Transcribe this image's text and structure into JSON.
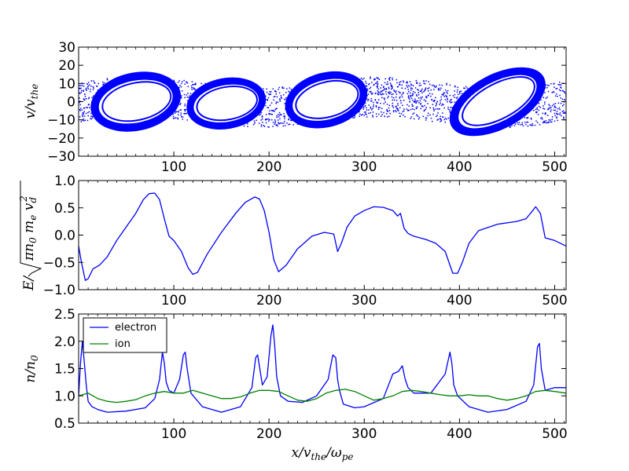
{
  "chart_data": [
    {
      "type": "scatter",
      "panel": "phase-space",
      "ylabel": "v/v_the",
      "xlim": [
        0,
        512
      ],
      "ylim": [
        -30,
        30
      ],
      "xticks": [
        "100",
        "200",
        "300",
        "400",
        "500"
      ],
      "yticks": [
        "−30",
        "−20",
        "−10",
        "0",
        "10",
        "20",
        "30"
      ],
      "color": "#0000ff",
      "vortices": [
        {
          "x": 60,
          "v": 0,
          "width": 48,
          "height": 16,
          "tilt": -12
        },
        {
          "x": 155,
          "v": -1,
          "width": 42,
          "height": 14,
          "tilt": -10
        },
        {
          "x": 260,
          "v": 1,
          "width": 44,
          "height": 15,
          "tilt": -15
        },
        {
          "x": 440,
          "v": 0,
          "width": 55,
          "height": 15,
          "tilt": -28
        }
      ]
    },
    {
      "type": "line",
      "panel": "electric-field",
      "ylabel": "E/√(πn₀ m_e v_d²)",
      "xlim": [
        0,
        512
      ],
      "ylim": [
        -1.0,
        1.0
      ],
      "xticks": [
        "100",
        "200",
        "300",
        "400",
        "500"
      ],
      "yticks": [
        "−1.0",
        "−0.5",
        "0.0",
        "0.5",
        "1.0"
      ],
      "series": [
        {
          "color": "#0000ff",
          "x": [
            0,
            3,
            7,
            10,
            15,
            22,
            30,
            40,
            50,
            60,
            68,
            74,
            80,
            85,
            90,
            95,
            100,
            108,
            115,
            120,
            125,
            135,
            150,
            165,
            175,
            185,
            190,
            195,
            200,
            205,
            210,
            218,
            230,
            245,
            258,
            268,
            272,
            276,
            282,
            290,
            300,
            310,
            320,
            330,
            335,
            338,
            342,
            346,
            352,
            365,
            375,
            385,
            393,
            398,
            403,
            410,
            420,
            440,
            460,
            470,
            477,
            480,
            485,
            490,
            500,
            512
          ],
          "y": [
            -0.2,
            -0.5,
            -0.83,
            -0.8,
            -0.62,
            -0.55,
            -0.4,
            -0.1,
            0.15,
            0.4,
            0.65,
            0.76,
            0.77,
            0.65,
            0.3,
            -0.02,
            -0.1,
            -0.3,
            -0.6,
            -0.72,
            -0.68,
            -0.35,
            0.05,
            0.4,
            0.6,
            0.7,
            0.66,
            0.45,
            0.05,
            -0.45,
            -0.67,
            -0.55,
            -0.25,
            -0.02,
            0.05,
            0.02,
            -0.3,
            -0.15,
            0.15,
            0.35,
            0.45,
            0.52,
            0.51,
            0.45,
            0.35,
            0.4,
            0.12,
            0.03,
            -0.02,
            -0.08,
            -0.15,
            -0.3,
            -0.7,
            -0.7,
            -0.5,
            -0.15,
            0.08,
            0.2,
            0.25,
            0.3,
            0.45,
            0.52,
            0.4,
            -0.05,
            -0.1,
            -0.2
          ]
        }
      ]
    },
    {
      "type": "line",
      "panel": "density",
      "xlabel": "x/v_the/ω_pe",
      "ylabel": "n/n₀",
      "xlim": [
        0,
        512
      ],
      "ylim": [
        0.5,
        2.5
      ],
      "xticks": [
        "100",
        "200",
        "300",
        "400",
        "500"
      ],
      "yticks": [
        "0.5",
        "1.0",
        "1.5",
        "2.0",
        "2.5"
      ],
      "legend": "upper-left",
      "series": [
        {
          "name": "electron",
          "color": "#0000ff",
          "x": [
            0,
            2,
            4,
            6,
            8,
            10,
            14,
            20,
            30,
            50,
            70,
            80,
            85,
            88,
            90,
            92,
            95,
            100,
            106,
            110,
            112,
            114,
            118,
            130,
            150,
            170,
            182,
            186,
            188,
            193,
            198,
            202,
            204,
            206,
            208,
            212,
            220,
            235,
            250,
            262,
            267,
            270,
            272,
            274,
            278,
            290,
            300,
            320,
            330,
            336,
            340,
            343,
            346,
            352,
            370,
            385,
            390,
            392,
            394,
            398,
            410,
            430,
            450,
            470,
            478,
            482,
            484,
            486,
            490,
            500,
            512
          ],
          "y": [
            1.0,
            1.6,
            2.0,
            1.6,
            1.2,
            0.9,
            0.8,
            0.75,
            0.7,
            0.72,
            0.78,
            0.95,
            1.3,
            1.8,
            1.6,
            1.25,
            1.1,
            1.05,
            1.3,
            1.75,
            1.8,
            1.5,
            1.05,
            0.8,
            0.7,
            0.8,
            1.15,
            1.7,
            1.75,
            1.2,
            1.35,
            2.1,
            2.3,
            1.9,
            1.35,
            1.0,
            0.9,
            0.88,
            1.0,
            1.3,
            1.75,
            1.7,
            1.3,
            1.1,
            0.85,
            0.78,
            0.8,
            0.95,
            1.4,
            1.45,
            1.55,
            1.3,
            1.15,
            1.05,
            1.05,
            1.4,
            1.8,
            1.6,
            1.2,
            1.0,
            0.8,
            0.7,
            0.75,
            0.9,
            1.2,
            1.9,
            1.96,
            1.5,
            1.1,
            1.15,
            1.15
          ]
        },
        {
          "name": "ion",
          "color": "#008000",
          "x": [
            0,
            10,
            20,
            30,
            40,
            50,
            60,
            70,
            80,
            90,
            100,
            110,
            120,
            130,
            140,
            150,
            160,
            170,
            180,
            190,
            200,
            210,
            220,
            230,
            240,
            250,
            260,
            270,
            280,
            290,
            300,
            310,
            320,
            330,
            340,
            350,
            360,
            370,
            380,
            390,
            400,
            410,
            420,
            430,
            440,
            450,
            460,
            470,
            480,
            490,
            500,
            512
          ],
          "y": [
            1.0,
            1.05,
            0.95,
            0.9,
            0.88,
            0.9,
            0.93,
            1.0,
            1.05,
            1.08,
            1.05,
            1.05,
            1.1,
            1.05,
            1.0,
            0.95,
            0.95,
            0.98,
            1.05,
            1.1,
            1.1,
            1.08,
            1.0,
            0.92,
            0.9,
            0.95,
            1.05,
            1.1,
            1.12,
            1.08,
            1.0,
            0.92,
            0.95,
            1.0,
            1.08,
            1.1,
            1.08,
            1.05,
            1.02,
            1.0,
            1.0,
            1.02,
            1.0,
            1.0,
            0.95,
            0.92,
            0.95,
            1.0,
            1.08,
            1.1,
            1.08,
            1.05
          ]
        }
      ]
    }
  ]
}
